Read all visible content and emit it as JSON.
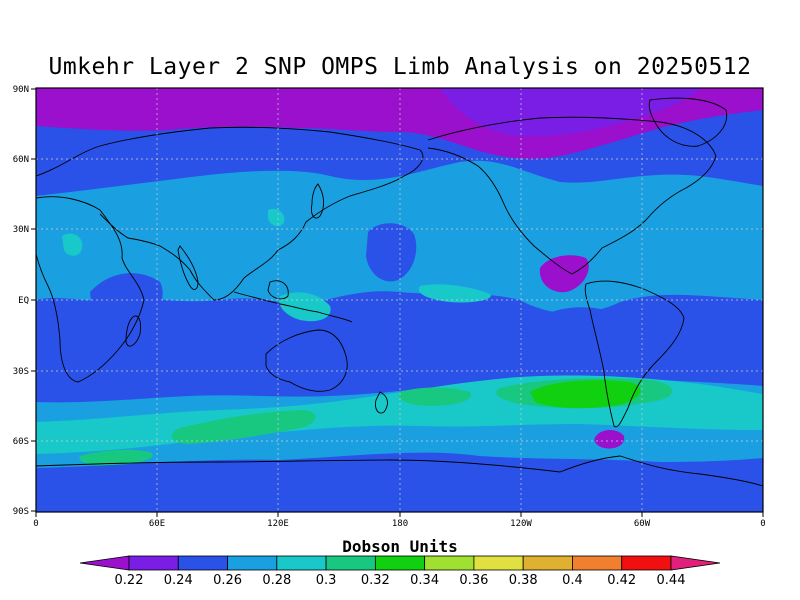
{
  "title": "Umkehr Layer 2 SNP OMPS Limb Analysis on 20250512",
  "map": {
    "lat_ticks": [
      "90N",
      "60N",
      "30N",
      "EQ",
      "30S",
      "60S",
      "90S"
    ],
    "lon_ticks": [
      "0",
      "60E",
      "120E",
      "180",
      "120W",
      "60W",
      "0"
    ],
    "field_units": "Dobson Units",
    "background_color": "#2a52e8",
    "regions": [
      {
        "name": "arctic-low",
        "value_bin": "0.22",
        "color": "#9a10cc"
      },
      {
        "name": "subtropical-band",
        "value_bin": "0.26",
        "color": "#1aa0e0"
      },
      {
        "name": "southern-band",
        "value_bin": "0.28",
        "color": "#19c8c8"
      },
      {
        "name": "southern-high-patches",
        "value_bin": "0.32",
        "color": "#19c880"
      },
      {
        "name": "south-pacific-max",
        "value_bin": "0.34",
        "color": "#10d010"
      },
      {
        "name": "central-america-low",
        "value_bin": "0.22",
        "color": "#9a10cc"
      },
      {
        "name": "antarctic-band",
        "value_bin": "0.24",
        "color": "#2a52e8"
      }
    ]
  },
  "colorbar": {
    "caption": "Dobson Units",
    "labels": [
      "0.22",
      "0.24",
      "0.26",
      "0.28",
      "0.3",
      "0.32",
      "0.34",
      "0.36",
      "0.38",
      "0.4",
      "0.42",
      "0.44"
    ],
    "colors": [
      "#9a10cc",
      "#7a1ee6",
      "#2a52e8",
      "#1aa0e0",
      "#19c8c8",
      "#19c880",
      "#10d010",
      "#a0e030",
      "#e0e040",
      "#e0b030",
      "#f08030",
      "#f01010",
      "#e0207a"
    ]
  }
}
